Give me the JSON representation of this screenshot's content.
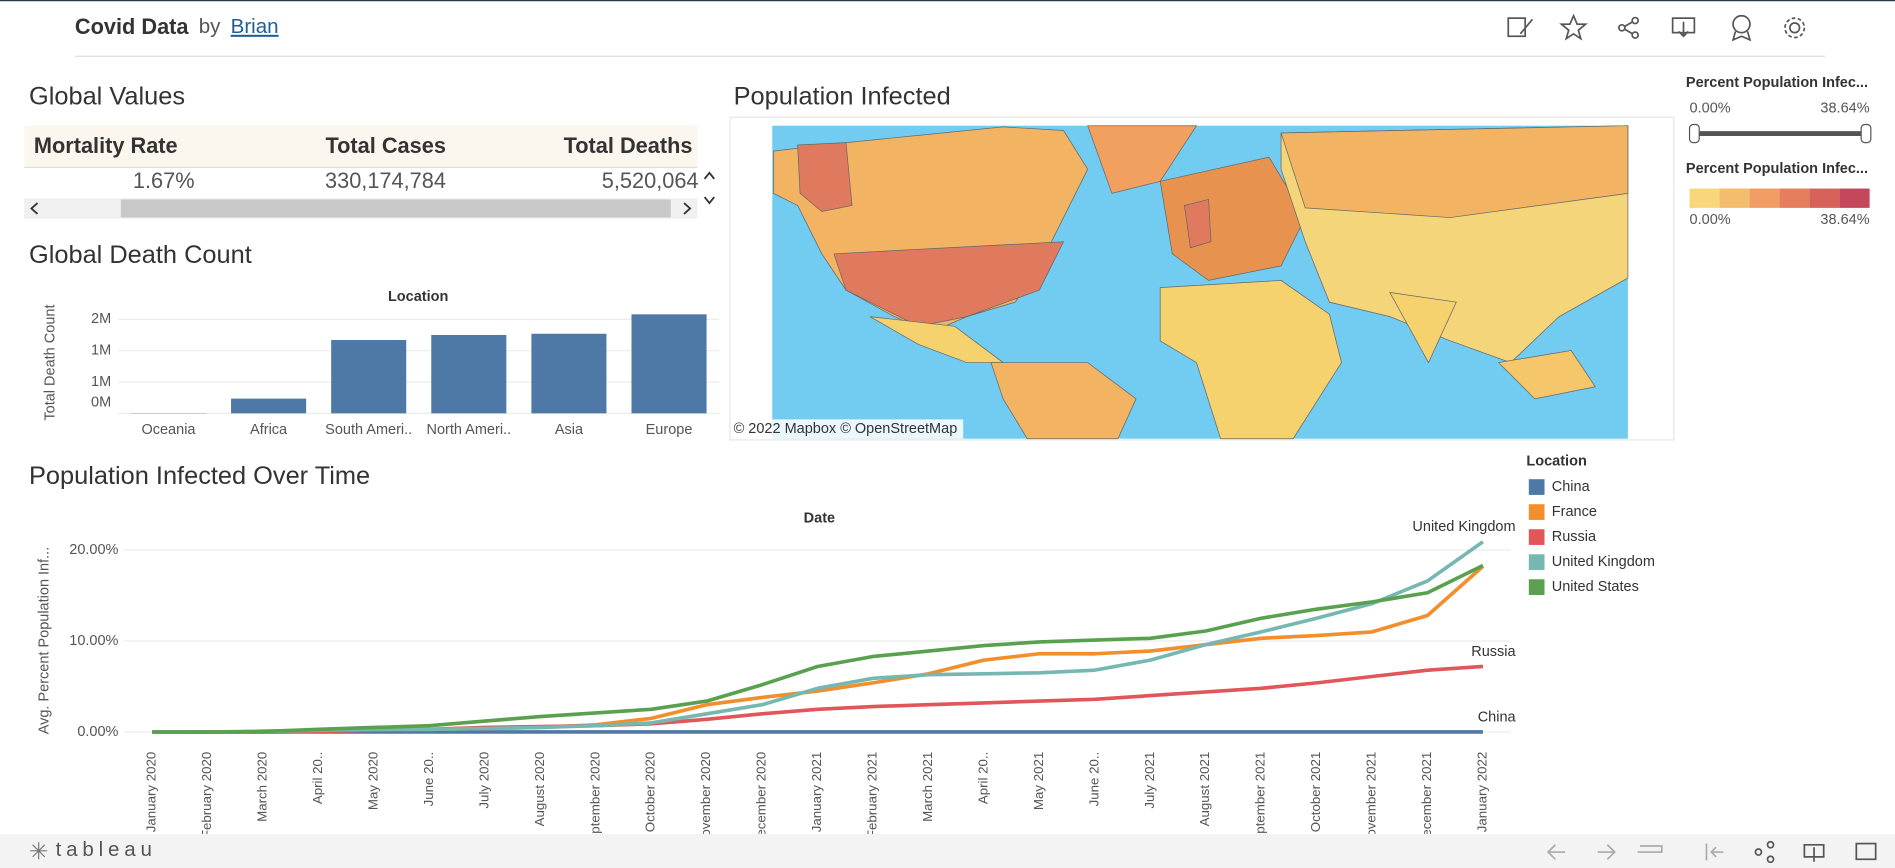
{
  "header": {
    "title": "Covid Data",
    "by": "by",
    "author": "Brian"
  },
  "global_values": {
    "title": "Global Values",
    "columns": [
      "Mortality Rate",
      "Total Cases",
      "Total Deaths"
    ],
    "row": [
      "1.67%",
      "330,174,784",
      "5,520,064"
    ]
  },
  "map": {
    "title": "Population Infected",
    "attribution": "© 2022 Mapbox  © OpenStreetMap",
    "filter": {
      "title": "Percent Population Infec...",
      "min_label": "0.00%",
      "max_label": "38.64%"
    },
    "legend": {
      "title": "Percent Population Infec...",
      "min_label": "0.00%",
      "max_label": "38.64%",
      "colors": [
        "#f8d77c",
        "#f4bd6b",
        "#f09c62",
        "#e57e5d",
        "#d6625a",
        "#c4475b"
      ]
    }
  },
  "chart_data": [
    {
      "type": "bar",
      "title": "Global Death Count",
      "x_label": "Location",
      "y_label": "Total Death Count",
      "categories": [
        "Oceania",
        "Africa",
        "South Ameri..",
        "North Ameri..",
        "Asia",
        "Europe"
      ],
      "values": [
        4000,
        235000,
        1170000,
        1250000,
        1270000,
        1580000
      ],
      "color": "#4e79a7",
      "ylim": [
        0,
        1620000
      ],
      "yticks": [
        {
          "value": 0,
          "label": "0M"
        },
        {
          "value": 500000,
          "label": "1M"
        },
        {
          "value": 1000000,
          "label": "1M"
        },
        {
          "value": 1500000,
          "label": "2M"
        }
      ],
      "grid": true
    },
    {
      "type": "line",
      "title": "Population Infected Over Time",
      "x_label": "Date",
      "y_label": "Avg. Percent Population Inf...",
      "legend_title": "Location",
      "categories": [
        "January 2020",
        "February 2020",
        "March 2020",
        "April 20..",
        "May 2020",
        "June 20..",
        "July 2020",
        "August 2020",
        "September 2020",
        "October 2020",
        "November 2020",
        "December 2020",
        "January 2021",
        "February 2021",
        "March 2021",
        "April 20..",
        "May 2021",
        "June 20..",
        "July 2021",
        "August 2021",
        "September 2021",
        "October 2021",
        "November 2021",
        "December 2021",
        "January 2022"
      ],
      "series": [
        {
          "name": "China",
          "color": "#4e79a7",
          "end_label": true,
          "values": [
            0,
            0.01,
            0.01,
            0.01,
            0.01,
            0.01,
            0.01,
            0.01,
            0.01,
            0.01,
            0.01,
            0.01,
            0.01,
            0.01,
            0.01,
            0.01,
            0.01,
            0.01,
            0.01,
            0.01,
            0.01,
            0.01,
            0.01,
            0.01,
            0.01
          ]
        },
        {
          "name": "France",
          "color": "#f28e2b",
          "values": [
            0,
            0,
            0.1,
            0.2,
            0.3,
            0.3,
            0.4,
            0.5,
            0.8,
            1.5,
            3.0,
            3.8,
            4.5,
            5.4,
            6.4,
            7.9,
            8.6,
            8.6,
            8.9,
            9.6,
            10.3,
            10.6,
            11.0,
            12.8,
            18.2
          ]
        },
        {
          "name": "Russia",
          "color": "#e15759",
          "end_label": true,
          "values": [
            0,
            0,
            0,
            0.05,
            0.2,
            0.3,
            0.5,
            0.6,
            0.7,
            0.9,
            1.4,
            2.0,
            2.5,
            2.8,
            3.0,
            3.2,
            3.4,
            3.6,
            4.0,
            4.4,
            4.8,
            5.4,
            6.1,
            6.8,
            7.2
          ]
        },
        {
          "name": "United Kingdom",
          "color": "#76b7b2",
          "end_label": true,
          "values": [
            0,
            0,
            0.05,
            0.2,
            0.3,
            0.3,
            0.4,
            0.5,
            0.7,
            1.0,
            2.0,
            3.0,
            4.8,
            5.9,
            6.3,
            6.4,
            6.5,
            6.8,
            7.9,
            9.6,
            11.0,
            12.5,
            14.1,
            16.6,
            20.9
          ]
        },
        {
          "name": "United States",
          "color": "#59a14f",
          "values": [
            0,
            0,
            0.05,
            0.3,
            0.5,
            0.7,
            1.2,
            1.7,
            2.1,
            2.5,
            3.4,
            5.2,
            7.2,
            8.3,
            8.9,
            9.5,
            9.9,
            10.1,
            10.3,
            11.1,
            12.5,
            13.5,
            14.3,
            15.3,
            18.3
          ]
        }
      ],
      "ylim": [
        -1.5,
        22
      ],
      "yticks": [
        {
          "value": 0,
          "label": "0.00%"
        },
        {
          "value": 10,
          "label": "10.00%"
        },
        {
          "value": 20,
          "label": "20.00%"
        }
      ],
      "grid": true
    }
  ],
  "footer": {
    "brand": "tableau"
  }
}
